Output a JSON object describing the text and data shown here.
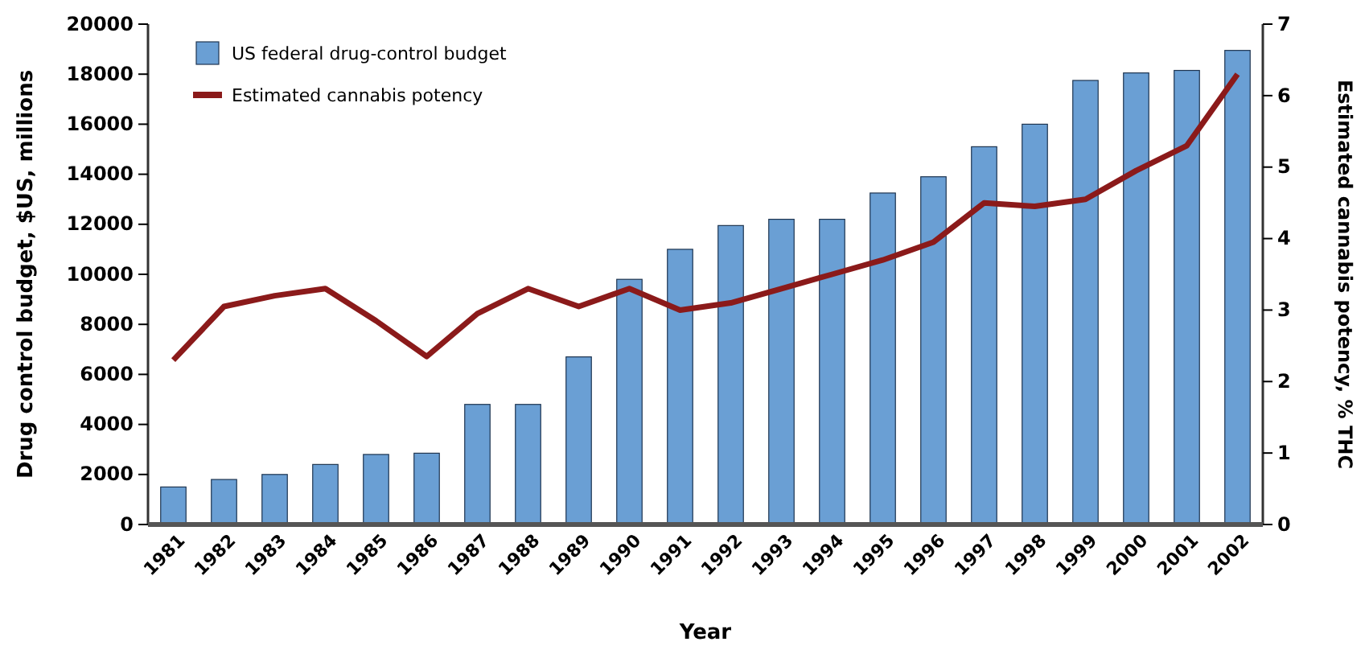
{
  "chart_data": {
    "type": "bar",
    "xlabel": "Year",
    "ylabel": "Drug control budget, $US, millions",
    "y2label": "Estimated cannabis potency, % THC",
    "categories": [
      "1981",
      "1982",
      "1983",
      "1984",
      "1985",
      "1986",
      "1987",
      "1988",
      "1989",
      "1990",
      "1991",
      "1992",
      "1993",
      "1994",
      "1995",
      "1996",
      "1997",
      "1998",
      "1999",
      "2000",
      "2001",
      "2002"
    ],
    "series": [
      {
        "name": "US federal drug-control budget",
        "type": "bar",
        "color": "#6a9fd4",
        "values": [
          1500,
          1800,
          2000,
          2400,
          2800,
          2850,
          4800,
          4800,
          6700,
          9800,
          11000,
          11950,
          12200,
          12200,
          13250,
          13900,
          15100,
          16000,
          17750,
          18050,
          18150,
          18950
        ]
      },
      {
        "name": "Estimated cannabis potency",
        "type": "line",
        "axis": "y2",
        "color": "#8b1a1a",
        "values": [
          2.3,
          3.05,
          3.2,
          3.3,
          2.85,
          2.35,
          2.95,
          3.3,
          3.05,
          3.3,
          3.0,
          3.1,
          3.3,
          3.5,
          3.7,
          3.95,
          4.5,
          4.45,
          4.55,
          4.95,
          5.3,
          6.3
        ]
      }
    ],
    "ylim": [
      0,
      20000
    ],
    "yticks": [
      0,
      2000,
      4000,
      6000,
      8000,
      10000,
      12000,
      14000,
      16000,
      18000,
      20000
    ],
    "y2lim": [
      0,
      7
    ],
    "y2ticks": [
      0,
      1,
      2,
      3,
      4,
      5,
      6,
      7
    ],
    "legend": "top left",
    "grid": false,
    "marker": "none",
    "line_style": "solid"
  }
}
